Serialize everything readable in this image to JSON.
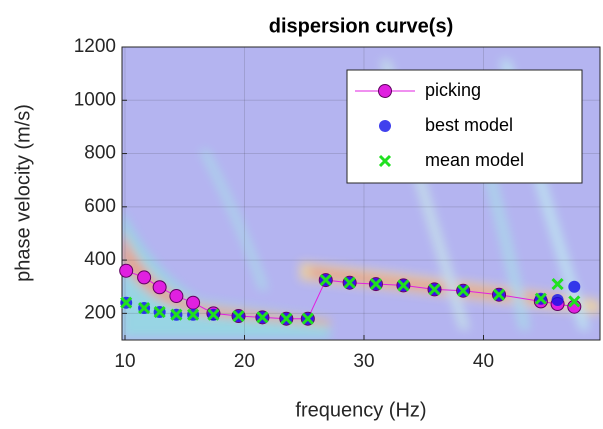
{
  "chart_data": {
    "type": "scatter",
    "title": "dispersion curve(s)",
    "x_label": "frequency (Hz)",
    "y_label": "phase velocity (m/s)",
    "xlim": [
      9.75,
      49.75
    ],
    "ylim": [
      100,
      1200
    ],
    "xticks": [
      10,
      20,
      30,
      40
    ],
    "yticks": [
      200,
      400,
      600,
      800,
      1000,
      1200
    ],
    "grid": true,
    "legend": "northeast",
    "series": [
      {
        "name": "picking",
        "color": "#e020e0",
        "marker": "o",
        "line": true,
        "x": [
          10.1,
          11.6,
          12.9,
          14.3,
          15.7,
          17.4,
          19.5,
          21.5,
          23.5,
          25.3,
          26.8,
          28.8,
          31,
          33.3,
          35.9,
          38.3,
          41.3,
          44.8,
          46.2,
          47.6
        ],
        "values": [
          360,
          335,
          298,
          265,
          240,
          200,
          190,
          185,
          180,
          180,
          325,
          315,
          310,
          305,
          290,
          285,
          270,
          245,
          235,
          225
        ]
      },
      {
        "name": "best model",
        "color": "#1010e8",
        "marker": "dot",
        "line": false,
        "x": [
          10.1,
          11.6,
          12.9,
          14.3,
          15.7,
          17.4,
          19.5,
          21.5,
          23.5,
          25.3,
          26.8,
          28.8,
          31,
          33.3,
          35.9,
          38.3,
          41.3,
          44.8,
          46.2,
          47.6
        ],
        "values": [
          240,
          220,
          205,
          195,
          195,
          195,
          190,
          185,
          180,
          180,
          325,
          315,
          310,
          305,
          290,
          285,
          270,
          255,
          250,
          300
        ]
      },
      {
        "name": "mean model",
        "color": "#20e020",
        "marker": "x",
        "line": false,
        "x": [
          10.1,
          11.6,
          12.9,
          14.3,
          15.7,
          17.4,
          19.5,
          21.5,
          23.5,
          25.3,
          26.8,
          28.8,
          31,
          33.3,
          35.9,
          38.3,
          41.3,
          44.8,
          46.2,
          47.6
        ],
        "values": [
          240,
          220,
          205,
          195,
          195,
          195,
          190,
          185,
          180,
          180,
          325,
          315,
          310,
          305,
          290,
          285,
          270,
          255,
          310,
          245
        ]
      }
    ]
  }
}
